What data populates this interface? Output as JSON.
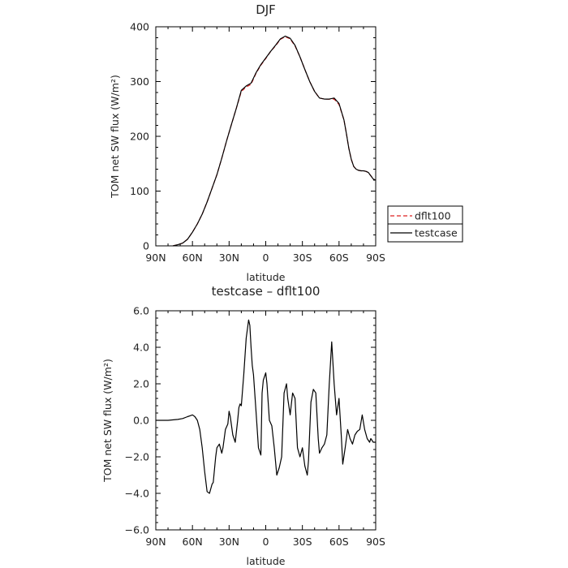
{
  "chart_data": [
    {
      "type": "line",
      "title": "DJF",
      "xlabel": "latitude",
      "ylabel": "TOM net SW flux (W/m²)",
      "xlim": [
        90,
        -90
      ],
      "ylim": [
        0,
        400
      ],
      "x_tick_values": [
        90,
        60,
        30,
        0,
        -30,
        -60,
        -90
      ],
      "x_tick_labels": [
        "90N",
        "60N",
        "30N",
        "0",
        "30S",
        "60S",
        "90S"
      ],
      "y_tick_values": [
        0,
        100,
        200,
        300,
        400
      ],
      "y_tick_labels": [
        "0",
        "100",
        "200",
        "300",
        "400"
      ],
      "legend_position": "right",
      "series": [
        {
          "name": "dflt100",
          "color": "#dd2222",
          "dash": "dashed",
          "x": [
            76,
            72,
            68,
            64,
            60,
            56,
            52,
            48,
            44,
            40,
            36,
            32,
            28,
            24,
            20,
            16,
            12,
            8,
            4,
            0,
            -4,
            -8,
            -12,
            -16,
            -20,
            -24,
            -28,
            -32,
            -36,
            -40,
            -44,
            -48,
            -52,
            -56,
            -60,
            -64,
            -66,
            -68,
            -70,
            -72,
            -74,
            -76,
            -78,
            -80,
            -82,
            -84,
            -86,
            -88,
            -90
          ],
          "y": [
            0,
            2,
            5,
            12,
            25,
            40,
            58,
            80,
            105,
            130,
            160,
            192,
            222,
            252,
            282,
            290,
            295,
            315,
            330,
            342,
            355,
            365,
            377,
            382,
            378,
            365,
            345,
            322,
            300,
            282,
            270,
            268,
            268,
            268,
            258,
            230,
            205,
            178,
            158,
            145,
            140,
            138,
            137,
            137,
            136,
            134,
            128,
            122,
            120
          ]
        },
        {
          "name": "testcase",
          "color": "#000000",
          "dash": "solid",
          "x": [
            76,
            72,
            68,
            64,
            60,
            56,
            52,
            48,
            44,
            40,
            36,
            32,
            28,
            24,
            20,
            16,
            12,
            8,
            4,
            0,
            -4,
            -8,
            -12,
            -16,
            -20,
            -24,
            -28,
            -32,
            -36,
            -40,
            -44,
            -48,
            -52,
            -56,
            -60,
            -64,
            -66,
            -68,
            -70,
            -72,
            -74,
            -76,
            -78,
            -80,
            -82,
            -84,
            -86,
            -88,
            -90
          ],
          "y": [
            0,
            2,
            5,
            12,
            25,
            40,
            58,
            80,
            105,
            130,
            160,
            192,
            222,
            252,
            284,
            292,
            297,
            316,
            331,
            343,
            355,
            366,
            378,
            383,
            379,
            366,
            345,
            322,
            300,
            282,
            270,
            268,
            268,
            270,
            260,
            230,
            205,
            178,
            158,
            145,
            140,
            138,
            137,
            137,
            136,
            134,
            128,
            122,
            120
          ]
        }
      ]
    },
    {
      "type": "line",
      "title": "testcase – dflt100",
      "xlabel": "latitude",
      "ylabel": "TOM net SW flux (W/m²)",
      "xlim": [
        90,
        -90
      ],
      "ylim": [
        -6,
        6
      ],
      "x_tick_values": [
        90,
        60,
        30,
        0,
        -30,
        -60,
        -90
      ],
      "x_tick_labels": [
        "90N",
        "60N",
        "30N",
        "0",
        "30S",
        "60S",
        "90S"
      ],
      "y_tick_values": [
        -6,
        -4,
        -2,
        0,
        2,
        4,
        6
      ],
      "y_tick_labels": [
        "−6.0",
        "−4.0",
        "−2.0",
        "0.0",
        "2.0",
        "4.0",
        "6.0"
      ],
      "series": [
        {
          "color": "#000000",
          "x": [
            90,
            80,
            72,
            68,
            64,
            62,
            60,
            58,
            56,
            54,
            52,
            50,
            48,
            46,
            44,
            43,
            41,
            40,
            38,
            36,
            35,
            33,
            31,
            30,
            29,
            27,
            25,
            23,
            22,
            21,
            20,
            18,
            16,
            14,
            13,
            12,
            11,
            10,
            8,
            6,
            4,
            3,
            2,
            0,
            -1,
            -3,
            -5,
            -7,
            -9,
            -11,
            -13,
            -15,
            -17,
            -18,
            -20,
            -22,
            -24,
            -26,
            -28,
            -30,
            -32,
            -34,
            -35,
            -37,
            -39,
            -41,
            -43,
            -44,
            -46,
            -48,
            -50,
            -52,
            -54,
            -56,
            -58,
            -60,
            -62,
            -63,
            -65,
            -67,
            -69,
            -71,
            -73,
            -75,
            -77,
            -79,
            -81,
            -83,
            -85,
            -86,
            -88,
            -90
          ],
          "y": [
            0.0,
            0.0,
            0.05,
            0.1,
            0.2,
            0.25,
            0.3,
            0.2,
            0.0,
            -0.5,
            -1.5,
            -2.8,
            -3.9,
            -4.0,
            -3.5,
            -3.4,
            -2.0,
            -1.5,
            -1.3,
            -1.8,
            -1.5,
            -0.5,
            -0.2,
            0.5,
            0.2,
            -0.8,
            -1.2,
            0.0,
            0.7,
            0.9,
            0.8,
            2.5,
            4.5,
            5.5,
            5.2,
            4.0,
            3.0,
            2.5,
            0.5,
            -1.5,
            -1.9,
            1.5,
            2.2,
            2.6,
            2.0,
            0.0,
            -0.3,
            -1.5,
            -3.0,
            -2.6,
            -2.0,
            1.5,
            2.0,
            1.2,
            0.3,
            1.5,
            1.2,
            -1.5,
            -2.0,
            -1.5,
            -2.5,
            -3.0,
            -2.2,
            1.0,
            1.7,
            1.5,
            -1.0,
            -1.8,
            -1.5,
            -1.3,
            -0.8,
            2.0,
            4.3,
            2.0,
            0.3,
            1.2,
            -1.0,
            -2.4,
            -1.5,
            -0.5,
            -1.0,
            -1.3,
            -0.8,
            -0.6,
            -0.5,
            0.3,
            -0.5,
            -1.0,
            -1.2,
            -1.0,
            -1.2,
            -1.2
          ]
        }
      ]
    }
  ]
}
